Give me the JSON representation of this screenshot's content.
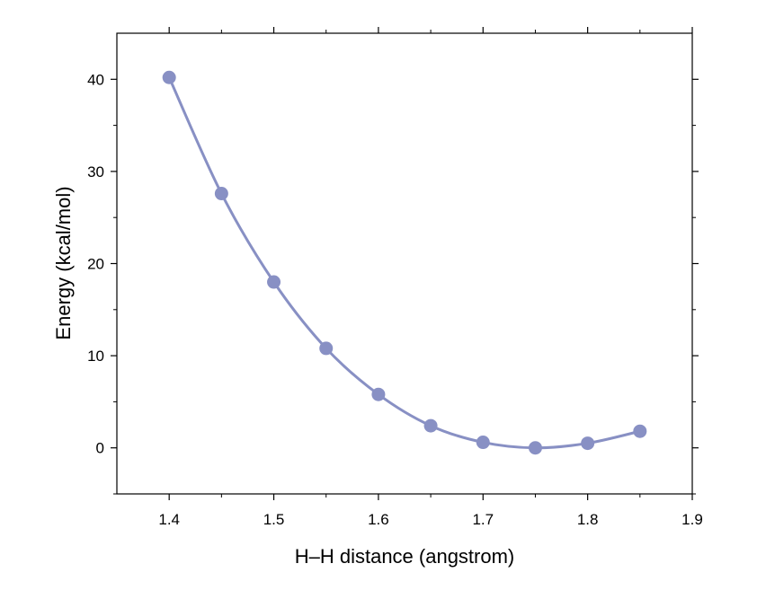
{
  "chart_data": {
    "type": "line",
    "xlabel": "H–H distance (angstrom)",
    "ylabel": "Energy (kcal/mol)",
    "xlim": [
      1.35,
      1.9
    ],
    "ylim": [
      -5,
      45
    ],
    "x_ticks": [
      1.4,
      1.5,
      1.6,
      1.7,
      1.8,
      1.9
    ],
    "x_tick_labels": [
      "1.4",
      "1.5",
      "1.6",
      "1.7",
      "1.8",
      "1.9"
    ],
    "y_ticks": [
      0,
      10,
      20,
      30,
      40
    ],
    "y_tick_labels": [
      "0",
      "10",
      "20",
      "30",
      "40"
    ],
    "grid": false,
    "colors": {
      "series": "#8890c4",
      "axis": "#000000"
    },
    "series": [
      {
        "x": [
          1.4,
          1.45,
          1.5,
          1.55,
          1.6,
          1.65,
          1.7,
          1.75,
          1.8,
          1.85
        ],
        "y": [
          40.2,
          27.6,
          18.0,
          10.8,
          5.8,
          2.4,
          0.6,
          0.0,
          0.5,
          1.8
        ]
      }
    ]
  }
}
